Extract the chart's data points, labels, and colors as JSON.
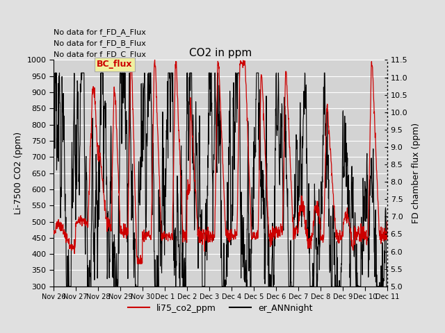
{
  "title": "CO2 in ppm",
  "ylabel_left": "Li-7500 CO2 (ppm)",
  "ylabel_right": "FD chamber flux (ppm)",
  "ylim_left": [
    300,
    1000
  ],
  "ylim_right": [
    5.0,
    11.5
  ],
  "yticks_left": [
    300,
    350,
    400,
    450,
    500,
    550,
    600,
    650,
    700,
    750,
    800,
    850,
    900,
    950,
    1000
  ],
  "yticks_right": [
    5.0,
    5.5,
    6.0,
    6.5,
    7.0,
    7.5,
    8.0,
    8.5,
    9.0,
    9.5,
    10.0,
    10.5,
    11.0,
    11.5
  ],
  "xtick_labels": [
    "Nov 26",
    "Nov 27",
    "Nov 28",
    "Nov 29",
    "Nov 30",
    "Dec 1",
    "Dec 2",
    "Dec 3",
    "Dec 4",
    "Dec 5",
    "Dec 6",
    "Dec 7",
    "Dec 8",
    "Dec 9",
    "Dec 10",
    "Dec 11"
  ],
  "legend_texts": [
    "li75_co2_ppm",
    "er_ANNnight"
  ],
  "no_data_texts": [
    "No data for f_FD_A_Flux",
    "No data for f_FD_B_Flux",
    "No data for f_FD_C_Flux"
  ],
  "bc_flux_label": "BC_flux",
  "background_color": "#e0e0e0",
  "plot_bg_color": "#d3d3d3",
  "grid_color": "#c8c8c8",
  "red_color": "#cc0000",
  "black_color": "#000000",
  "title_fontsize": 11,
  "label_fontsize": 9,
  "tick_fontsize": 8,
  "xtick_fontsize": 7
}
